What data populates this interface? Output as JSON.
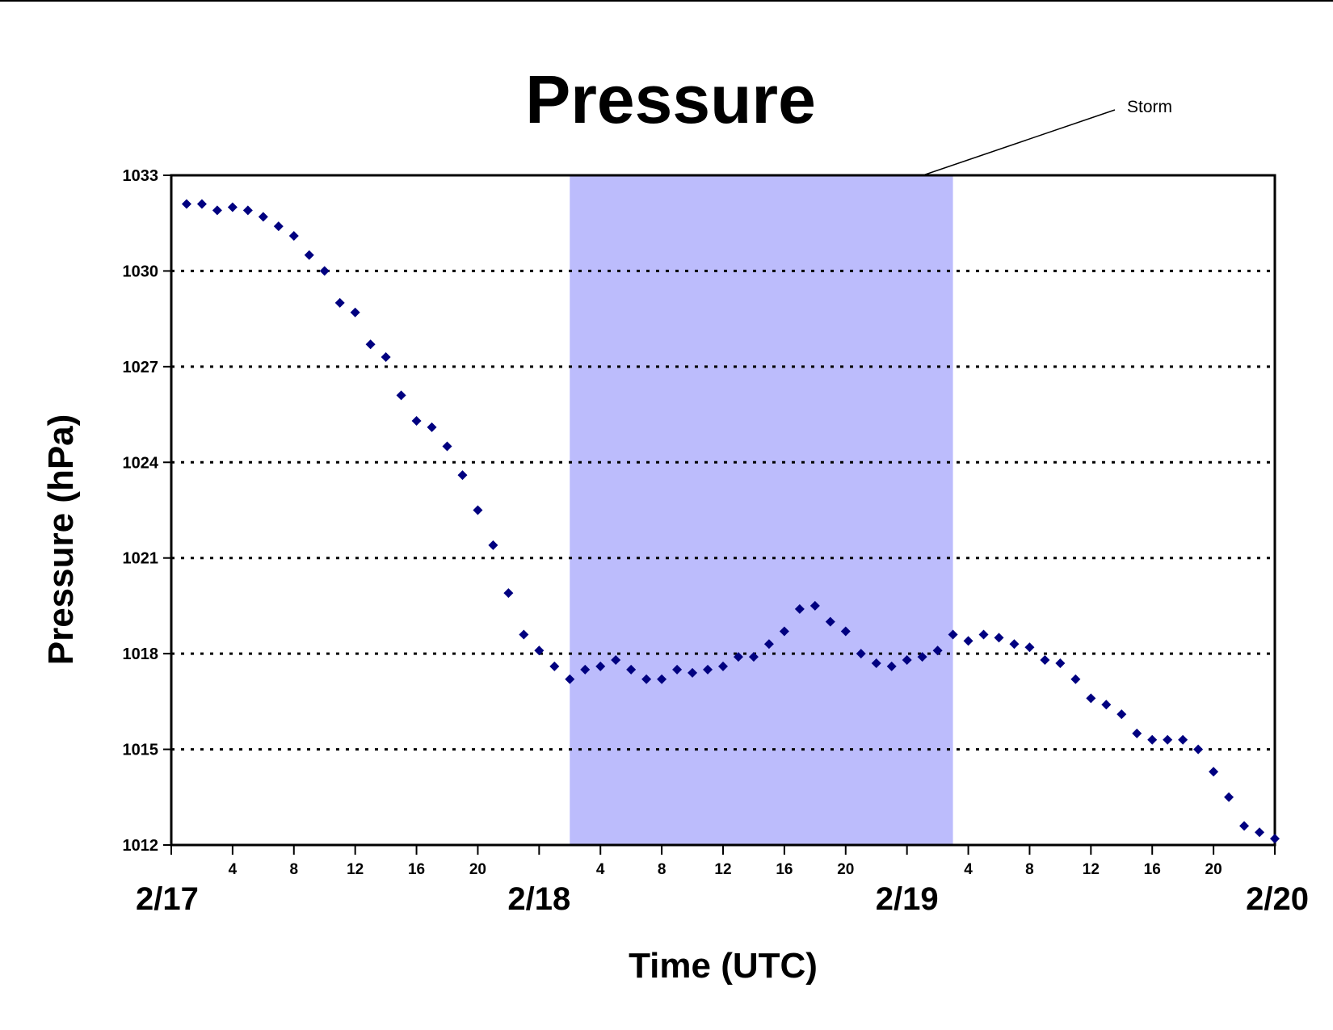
{
  "chart_data": {
    "type": "scatter",
    "title": "Pressure",
    "xlabel": "Time (UTC)",
    "ylabel": "Pressure (hPa)",
    "ylim": [
      1012,
      1033
    ],
    "yticks": [
      1012,
      1015,
      1018,
      1021,
      1024,
      1027,
      1030,
      1033
    ],
    "x_hour_ticks": [
      4,
      8,
      12,
      16,
      20,
      4,
      8,
      12,
      16,
      20,
      4,
      8,
      12,
      16,
      20
    ],
    "day_labels": [
      "2/17",
      "2/18",
      "2/19",
      "2/20"
    ],
    "grid": "horizontal dotted",
    "marker": "diamond",
    "marker_color": "#000080",
    "storm_shading": {
      "label": "Storm",
      "color": "#bcbcfc",
      "start": "2/18 02:00",
      "end": "2/19 03:00"
    },
    "series": [
      {
        "x_start": "2/17 01:00",
        "x_step_hours": 1,
        "values": [
          1032.1,
          1032.1,
          1031.9,
          1032.0,
          1031.9,
          1031.7,
          1031.4,
          1031.1,
          1030.5,
          1030.0,
          1029.0,
          1028.7,
          1027.7,
          1027.3,
          1026.1,
          1025.3,
          1025.1,
          1024.5,
          1023.6,
          1022.5,
          1021.4,
          1019.9,
          1018.6,
          1018.1,
          1017.6,
          1017.2,
          1017.5,
          1017.6,
          1017.8,
          1017.5,
          1017.2,
          1017.2,
          1017.5,
          1017.4,
          1017.5,
          1017.6,
          1017.9,
          1017.9,
          1018.3,
          1018.7,
          1019.4,
          1019.5,
          1019.0,
          1018.7,
          1018.0,
          1017.7,
          1017.6,
          1017.8,
          1017.9,
          1018.1,
          1018.6,
          1018.4,
          1018.6,
          1018.5,
          1018.3,
          1018.2,
          1017.8,
          1017.7,
          1017.2,
          1016.6,
          1016.4,
          1016.1,
          1015.5,
          1015.3,
          1015.3,
          1015.3,
          1015.0,
          1014.3,
          1013.5,
          1012.6,
          1012.4,
          1012.2
        ]
      }
    ]
  }
}
